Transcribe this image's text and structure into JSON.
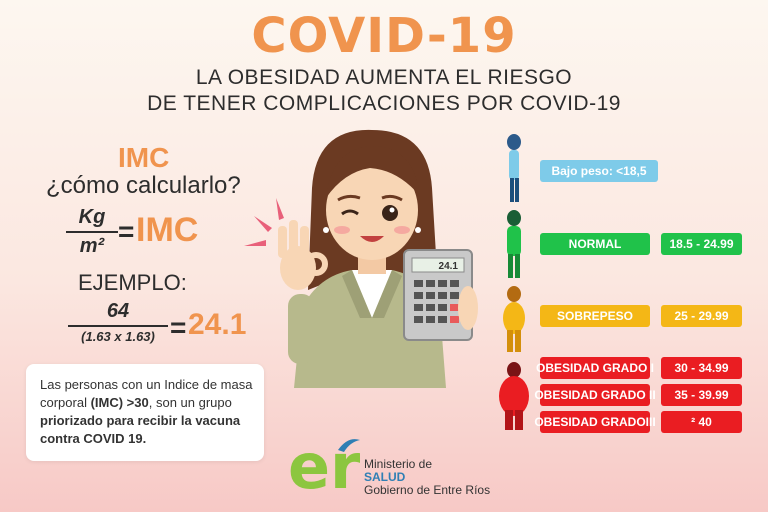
{
  "header": {
    "title": "COVID-19",
    "subtitle_line1": "LA OBESIDAD AUMENTA EL RIESGO",
    "subtitle_line2": "DE TENER COMPLICACIONES POR COVID-19"
  },
  "formula": {
    "heading": "IMC",
    "question": "¿cómo calcularlo?",
    "numerator": "Kg",
    "denominator": "m²",
    "equals": "=",
    "result_label": "IMC"
  },
  "example": {
    "label": "EJEMPLO:",
    "numerator": "64",
    "denominator": "(1.63 x 1.63)",
    "equals": "=",
    "result": "24.1"
  },
  "calculator_display": "24.1",
  "note": {
    "text_1": "Las personas con un Indice de masa corporal ",
    "text_bold_1": "(IMC) >30",
    "text_2": ", son un grupo ",
    "text_bold_2": "priorizado para recibir la vacuna contra COVID 19."
  },
  "categories": [
    {
      "label": "Bajo peso: <18,5",
      "range": "",
      "color": "#7ecbe9"
    },
    {
      "label": "NORMAL",
      "range": "18.5 - 24.99",
      "color": "#20c24a"
    },
    {
      "label": "SOBREPESO",
      "range": "25 - 29.99",
      "color": "#f4b716"
    },
    {
      "label": "OBESIDAD GRADO I",
      "range": "30 - 34.99",
      "color": "#ea1d22"
    },
    {
      "label": "OBESIDAD GRADO II",
      "range": "35 - 39.99",
      "color": "#ea1d22"
    },
    {
      "label": "OBESIDAD GRADOIII",
      "range": "² 40",
      "color": "#ea1d22"
    }
  ],
  "logo": {
    "mark": "er",
    "line1": "Ministerio de",
    "line2": "SALUD",
    "line3": "Gobierno de Entre Ríos"
  },
  "colors": {
    "accent_orange": "#f0944e",
    "text_dark": "#2d2d2d",
    "logo_green": "#8cc63f",
    "logo_blue": "#2f7fb4"
  }
}
